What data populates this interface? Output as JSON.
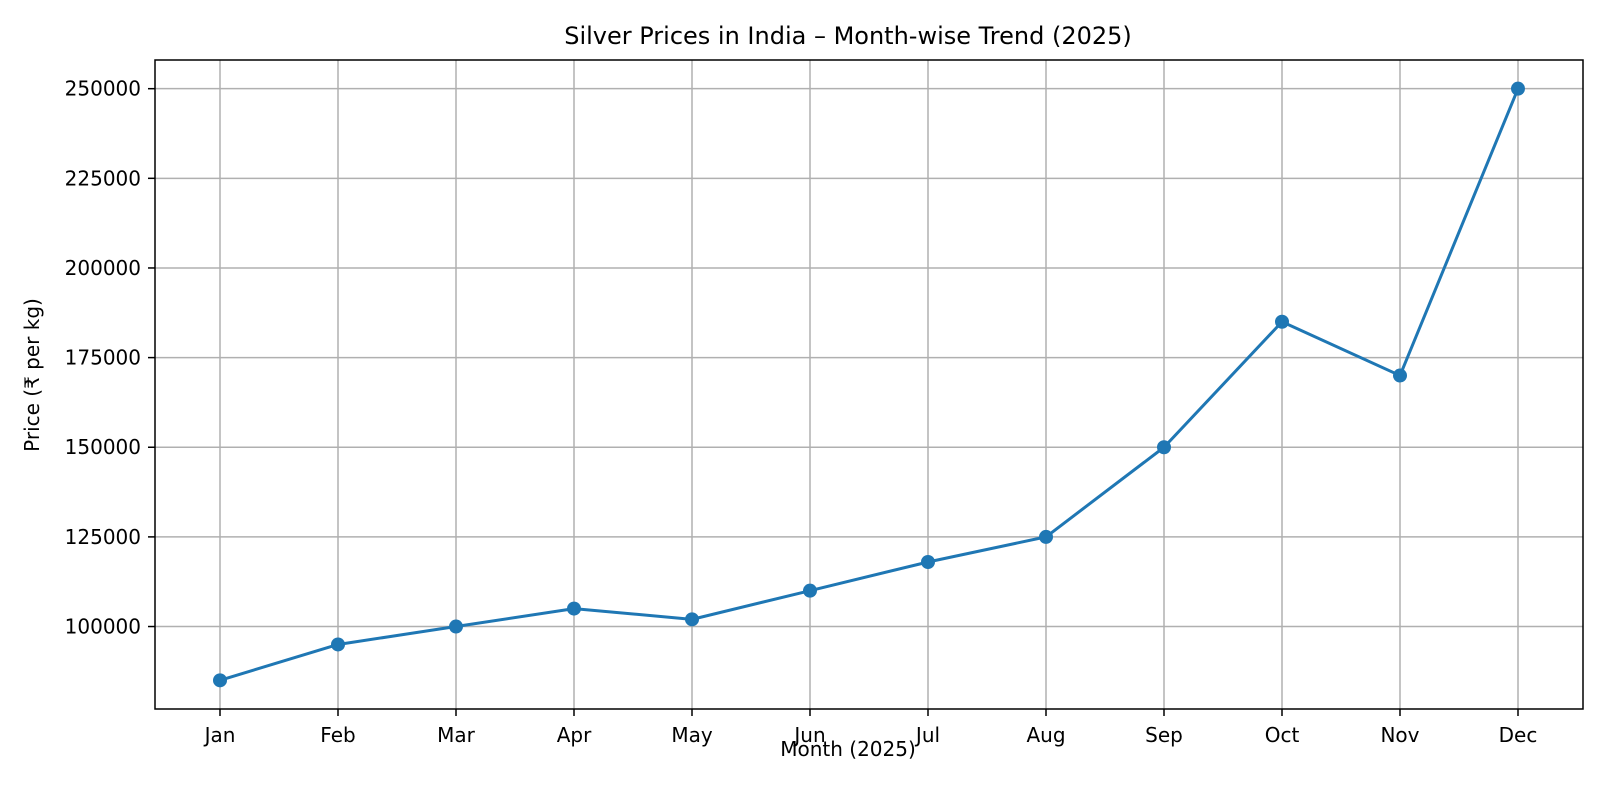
{
  "chart_data": {
    "type": "line",
    "title": "Silver Prices in India – Month-wise Trend (2025)",
    "xlabel": "Month (2025)",
    "ylabel": "Price (₹ per kg)",
    "categories": [
      "Jan",
      "Feb",
      "Mar",
      "Apr",
      "May",
      "Jun",
      "Jul",
      "Aug",
      "Sep",
      "Oct",
      "Nov",
      "Dec"
    ],
    "values": [
      85000,
      95000,
      100000,
      105000,
      102000,
      110000,
      118000,
      125000,
      150000,
      185000,
      170000,
      250000
    ],
    "ylim": [
      77000,
      258000
    ],
    "yticks": [
      100000,
      125000,
      150000,
      175000,
      200000,
      225000,
      250000
    ],
    "grid": true,
    "marker": "circle",
    "line_color": "#1f77b4"
  }
}
